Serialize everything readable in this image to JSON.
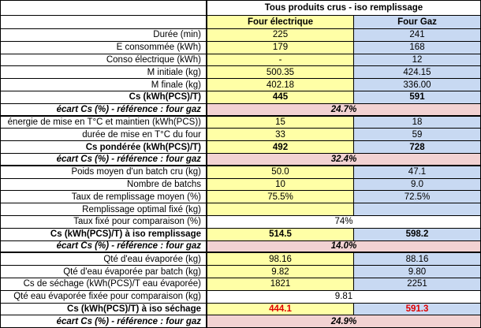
{
  "header": {
    "title": "Tous produits crus - iso remplissage",
    "col1": "Four électrique",
    "col2": "Four Gaz"
  },
  "rows": [
    {
      "label": "Durée (min)",
      "v1": "225",
      "v2": "241"
    },
    {
      "label": "E consommée (kWh)",
      "v1": "179",
      "v2": "168"
    },
    {
      "label": "Conso électrique (kWh)",
      "v1": "-",
      "v2": "12"
    },
    {
      "label": "M initiale (kg)",
      "v1": "500.35",
      "v2": "424.15"
    },
    {
      "label": "M finale (kg)",
      "v1": "402.18",
      "v2": "336.00"
    },
    {
      "label": "Cs (kWh(PCS)/T)",
      "v1": "445",
      "v2": "591"
    },
    {
      "label": "écart Cs (%) - référence : four gaz",
      "span": "24.7%"
    },
    {
      "label": "énergie de mise en T°C et maintien (kWh(PCS))",
      "v1": "15",
      "v2": "18"
    },
    {
      "label": "durée de mise en T°C du four",
      "v1": "33",
      "v2": "59"
    },
    {
      "label": "Cs pondérée (kWh(PCS)/T)",
      "v1": "492",
      "v2": "728"
    },
    {
      "label": "écart Cs (%) - référence : four gaz",
      "span": "32.4%"
    },
    {
      "label": "Poids moyen d'un batch cru (kg)",
      "v1": "50.0",
      "v2": "47.1"
    },
    {
      "label": "Nombre de batchs",
      "v1": "10",
      "v2": "9.0"
    },
    {
      "label": "Taux de remplissage moyen (%)",
      "v1": "75.5%",
      "v2": "72.5%"
    },
    {
      "label": "Remplissage optimal fixé (kg)",
      "v1": "",
      "v2": ""
    },
    {
      "label": "Taux fixé pour comparaison (%)",
      "span": "74%"
    },
    {
      "label": "Cs (kWh(PCS)/T) à iso remplissage",
      "v1": "514.5",
      "v2": "598.2"
    },
    {
      "label": "écart Cs (%) - référence : four gaz",
      "span": "14.0%"
    },
    {
      "label": "Qté d'eau évaporée (kg)",
      "v1": "98.16",
      "v2": "88.16"
    },
    {
      "label": "Qté d'eau évaporée par batch (kg)",
      "v1": "9.82",
      "v2": "9.80"
    },
    {
      "label": "Cs de séchage (kWh(PCS)/T eau évaporée)",
      "v1": "1821",
      "v2": "2251"
    },
    {
      "label": "Qté eau évaporée fixée pour comparaison (kg)",
      "span": "9.81"
    },
    {
      "label": "Cs (kWh(PCS)/T) à iso séchage",
      "v1": "444.1",
      "v2": "591.3"
    },
    {
      "label": "écart Cs (%) - référence : four gaz",
      "span": "24.9%"
    }
  ]
}
